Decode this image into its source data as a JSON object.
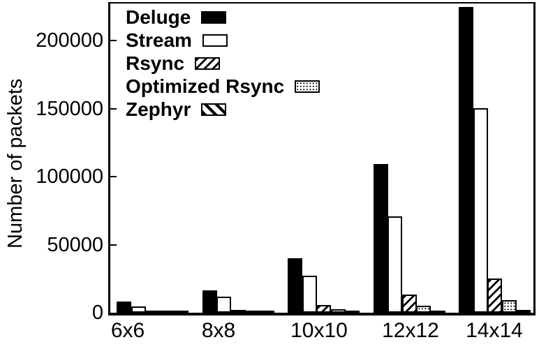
{
  "chart_data": {
    "type": "bar",
    "title": "",
    "xlabel": "",
    "ylabel": "Number of packets",
    "categories": [
      "6x6",
      "8x8",
      "10x10",
      "12x12",
      "14x14"
    ],
    "series": [
      {
        "name": "Deluge",
        "fill": "solid-black",
        "values": [
          8200,
          16300,
          40200,
          109400,
          224500
        ]
      },
      {
        "name": "Stream",
        "fill": "white",
        "values": [
          4600,
          11700,
          27000,
          70600,
          150500
        ]
      },
      {
        "name": "Rsync",
        "fill": "diagonal-hatch-forward",
        "values": [
          1100,
          2100,
          5600,
          13400,
          25000
        ]
      },
      {
        "name": "Optimized Rsync",
        "fill": "dots",
        "values": [
          500,
          900,
          2700,
          5100,
          9300
        ]
      },
      {
        "name": "Zephyr",
        "fill": "diagonal-hatch-back",
        "values": [
          200,
          300,
          800,
          1000,
          1900
        ]
      }
    ],
    "ylim": [
      0,
      227000
    ],
    "yticks": [
      0,
      50000,
      100000,
      150000,
      200000
    ],
    "ytick_labels": [
      "0",
      "50000",
      "100000",
      "150000",
      "200000"
    ],
    "legend_position": "top-left",
    "grid": false,
    "colors": {
      "foreground": "#000000",
      "background": "#ffffff"
    }
  }
}
